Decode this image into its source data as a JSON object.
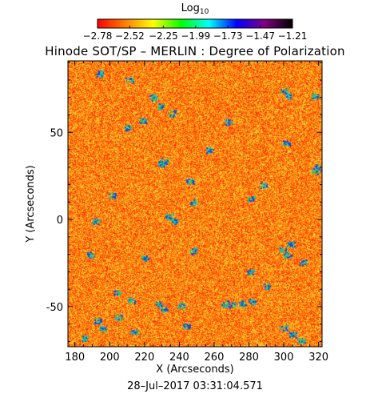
{
  "colorbar": {
    "label_main": "Log",
    "label_sub": "10",
    "ticks": [
      "−2.78",
      "−2.52",
      "−2.25",
      "−1.99",
      "−1.73",
      "−1.47",
      "−1.21"
    ],
    "tick_values": [
      -2.78,
      -2.52,
      -2.25,
      -1.99,
      -1.73,
      -1.47,
      -1.21
    ],
    "colors": [
      "#ff0000",
      "#ff7f00",
      "#ffff00",
      "#00ff00",
      "#00ffff",
      "#0000ff",
      "#800080",
      "#000000"
    ]
  },
  "title": "Hinode SOT/SP – MERLIN : Degree of Polarization",
  "timestamp": "28–Jul–2017 03:31:04.571",
  "chart_data": {
    "type": "heatmap",
    "title": "Hinode SOT/SP – MERLIN : Degree of Polarization",
    "xlabel": "X (Arcseconds)",
    "ylabel": "Y (Arcseconds)",
    "xlim": [
      176,
      322
    ],
    "ylim": [
      -73,
      91
    ],
    "xticks": [
      180,
      200,
      220,
      240,
      260,
      280,
      300,
      320
    ],
    "yticks": [
      -50,
      0,
      50
    ],
    "value_range": [
      -2.78,
      -1.21
    ],
    "grid": false,
    "description_colors": {
      "background_field": "#ff8a1e",
      "speckle_high": "#ffe020",
      "speckle_low": "#ff3a00",
      "network_patches": "#1060ff"
    },
    "network_patches": [
      {
        "x": 194,
        "y": 84
      },
      {
        "x": 211,
        "y": 80
      },
      {
        "x": 225,
        "y": 70
      },
      {
        "x": 229,
        "y": 65
      },
      {
        "x": 236,
        "y": 61
      },
      {
        "x": 210,
        "y": 53
      },
      {
        "x": 219,
        "y": 57
      },
      {
        "x": 257,
        "y": 40
      },
      {
        "x": 229,
        "y": 32
      },
      {
        "x": 231,
        "y": 34
      },
      {
        "x": 268,
        "y": 56
      },
      {
        "x": 300,
        "y": 74
      },
      {
        "x": 303,
        "y": 71
      },
      {
        "x": 318,
        "y": 71
      },
      {
        "x": 301,
        "y": 44
      },
      {
        "x": 318,
        "y": 28
      },
      {
        "x": 320,
        "y": 30
      },
      {
        "x": 201,
        "y": 14
      },
      {
        "x": 246,
        "y": 22
      },
      {
        "x": 288,
        "y": 20
      },
      {
        "x": 237,
        "y": -1
      },
      {
        "x": 248,
        "y": 10
      },
      {
        "x": 281,
        "y": 12
      },
      {
        "x": 234,
        "y": 2
      },
      {
        "x": 299,
        "y": -17
      },
      {
        "x": 302,
        "y": -20
      },
      {
        "x": 311,
        "y": -24
      },
      {
        "x": 304,
        "y": -14
      },
      {
        "x": 220,
        "y": -22
      },
      {
        "x": 248,
        "y": -18
      },
      {
        "x": 189,
        "y": -20
      },
      {
        "x": 204,
        "y": -42
      },
      {
        "x": 212,
        "y": -46
      },
      {
        "x": 228,
        "y": -48
      },
      {
        "x": 231,
        "y": -51
      },
      {
        "x": 241,
        "y": -49
      },
      {
        "x": 266,
        "y": -48
      },
      {
        "x": 270,
        "y": -49
      },
      {
        "x": 276,
        "y": -48
      },
      {
        "x": 282,
        "y": -47
      },
      {
        "x": 193,
        "y": -58
      },
      {
        "x": 196,
        "y": -62
      },
      {
        "x": 205,
        "y": -56
      },
      {
        "x": 186,
        "y": -68
      },
      {
        "x": 214,
        "y": -64
      },
      {
        "x": 244,
        "y": -61
      },
      {
        "x": 300,
        "y": -62
      },
      {
        "x": 305,
        "y": -66
      },
      {
        "x": 310,
        "y": -69
      },
      {
        "x": 290,
        "y": -38
      },
      {
        "x": 281,
        "y": -30
      },
      {
        "x": 192,
        "y": -1
      }
    ]
  }
}
